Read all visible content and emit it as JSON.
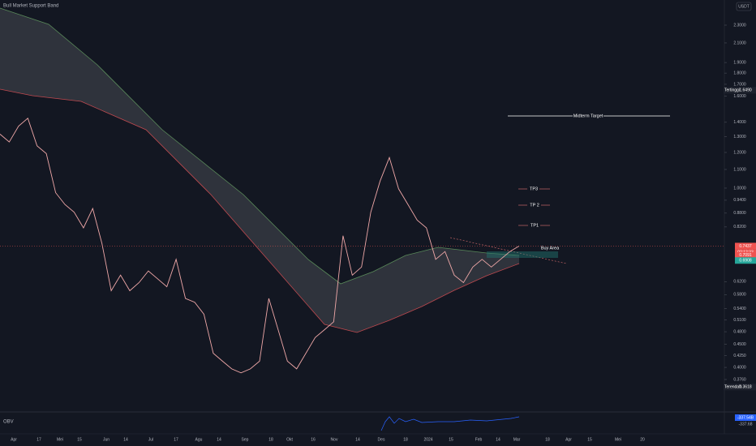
{
  "header": {
    "title": "Bull Market Support Band",
    "currency": "USDT"
  },
  "price_axis": {
    "scale": "log",
    "ticks": [
      {
        "value": 2.3,
        "label": "2.3000"
      },
      {
        "value": 2.1,
        "label": "2.1000"
      },
      {
        "value": 1.9,
        "label": "1.9000"
      },
      {
        "value": 1.8,
        "label": "1.8000"
      },
      {
        "value": 1.7,
        "label": "1.7000"
      },
      {
        "value": 1.6,
        "label": "1.6000"
      },
      {
        "value": 1.4,
        "label": "1.4000"
      },
      {
        "value": 1.3,
        "label": "1.3000"
      },
      {
        "value": 1.2,
        "label": "1.2000"
      },
      {
        "value": 1.1,
        "label": "1.1000"
      },
      {
        "value": 1.0,
        "label": "1.0000"
      },
      {
        "value": 0.94,
        "label": "0.9400"
      },
      {
        "value": 0.88,
        "label": "0.8800"
      },
      {
        "value": 0.82,
        "label": "0.8200"
      },
      {
        "value": 0.62,
        "label": "0.6200"
      },
      {
        "value": 0.58,
        "label": "0.5800"
      },
      {
        "value": 0.54,
        "label": "0.5400"
      },
      {
        "value": 0.51,
        "label": "0.5100"
      },
      {
        "value": 0.48,
        "label": "0.4800"
      },
      {
        "value": 0.45,
        "label": "0.4500"
      },
      {
        "value": 0.425,
        "label": "0.4250"
      },
      {
        "value": 0.4,
        "label": "0.4000"
      },
      {
        "value": 0.376,
        "label": "0.3760"
      }
    ]
  },
  "badges": {
    "high": {
      "name": "Tertinggi",
      "value": 1.649,
      "label": "1.6490"
    },
    "low": {
      "name": "Terendah",
      "value": 0.3618,
      "label": "0.3618"
    },
    "current": {
      "value": 0.7437,
      "label": "0.7437",
      "countdown": "02:12:33"
    },
    "band_upper": {
      "value": 0.7091,
      "label": "0.7091"
    },
    "band_lower": {
      "value": 0.6908,
      "label": "0.6908"
    }
  },
  "time_axis": {
    "labels": [
      "Apr",
      "17",
      "Mei",
      "15",
      "Jun",
      "14",
      "Jul",
      "17",
      "Agu",
      "14",
      "Sep",
      "18",
      "Okt",
      "16",
      "Nov",
      "14",
      "Des",
      "18",
      "2024",
      "15",
      "Feb",
      "14",
      "Mar",
      "18",
      "Apr",
      "15",
      "Mei",
      "20"
    ]
  },
  "annotations": {
    "midterm": "Midterm Target",
    "tp3": "TP3",
    "tp2": "TP 2",
    "tp1": "TP1",
    "buy": "Buy Area"
  },
  "price_series": {
    "values": [
      1.318,
      1.266,
      1.373,
      1.429,
      1.241,
      1.193,
      0.977,
      0.92,
      0.884,
      0.816,
      0.901,
      0.753,
      0.592,
      0.641,
      0.592,
      0.617,
      0.655,
      0.629,
      0.604,
      0.695,
      0.569,
      0.558,
      0.525,
      0.43,
      0.413,
      0.397,
      0.389,
      0.397,
      0.413,
      0.569,
      0.485,
      0.413,
      0.397,
      0.43,
      0.466,
      0.485,
      0.505,
      0.784,
      0.641,
      0.668,
      0.884,
      1.037,
      1.169,
      0.996,
      0.92,
      0.849,
      0.816,
      0.695,
      0.723,
      0.641,
      0.617,
      0.668,
      0.695,
      0.668,
      0.695,
      0.723,
      0.7437
    ]
  },
  "obv": {
    "label": "OBV",
    "value": "-337.54B",
    "secondary": "-337.68"
  }
}
